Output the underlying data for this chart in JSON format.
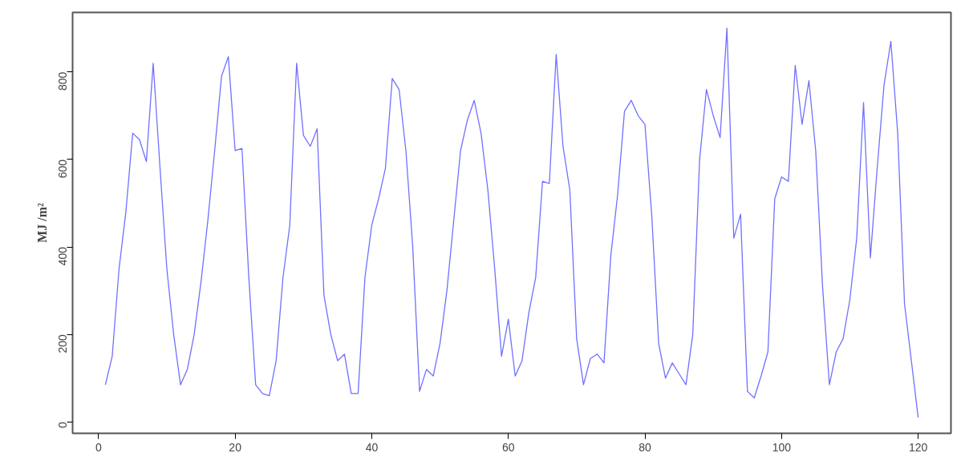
{
  "chart_data": {
    "type": "line",
    "ylabel": "MJ /m²",
    "x": [
      1,
      2,
      3,
      4,
      5,
      6,
      7,
      8,
      9,
      10,
      11,
      12,
      13,
      14,
      15,
      16,
      17,
      18,
      19,
      20,
      21,
      22,
      23,
      24,
      25,
      26,
      27,
      28,
      29,
      30,
      31,
      32,
      33,
      34,
      35,
      36,
      37,
      38,
      39,
      40,
      41,
      42,
      43,
      44,
      45,
      46,
      47,
      48,
      49,
      50,
      51,
      52,
      53,
      54,
      55,
      56,
      57,
      58,
      59,
      60,
      61,
      62,
      63,
      64,
      65,
      66,
      67,
      68,
      69,
      70,
      71,
      72,
      73,
      74,
      75,
      76,
      77,
      78,
      79,
      80,
      81,
      82,
      83,
      84,
      85,
      86,
      87,
      88,
      89,
      90,
      91,
      92,
      93,
      94,
      95,
      96,
      97,
      98,
      99,
      100,
      101,
      102,
      103,
      104,
      105,
      106,
      107,
      108,
      109,
      110,
      111,
      112,
      113,
      114,
      115,
      116,
      117,
      118,
      119,
      120
    ],
    "series": [
      {
        "color": "#7070ff",
        "values": [
          85,
          150,
          350,
          480,
          660,
          645,
          595,
          820,
          580,
          350,
          200,
          85,
          120,
          200,
          320,
          460,
          620,
          790,
          835,
          620,
          625,
          330,
          85,
          65,
          60,
          140,
          330,
          450,
          820,
          655,
          630,
          670,
          290,
          200,
          140,
          155,
          65,
          65,
          330,
          450,
          510,
          580,
          785,
          760,
          620,
          400,
          70,
          120,
          105,
          180,
          300,
          460,
          620,
          690,
          735,
          660,
          530,
          350,
          150,
          235,
          105,
          140,
          250,
          330,
          550,
          545,
          840,
          630,
          530,
          190,
          85,
          145,
          155,
          135,
          380,
          520,
          710,
          735,
          700,
          680,
          470,
          180,
          100,
          135,
          110,
          85,
          200,
          600,
          760,
          700,
          650,
          900,
          420,
          475,
          70,
          55,
          105,
          160,
          510,
          560,
          550,
          815,
          680,
          780,
          620,
          310,
          85,
          160,
          190,
          280,
          420,
          730,
          375,
          580,
          770,
          870,
          660,
          270,
          140,
          10
        ]
      }
    ],
    "xlim": [
      -3.8,
      124.8
    ],
    "ylim": [
      -26,
      936
    ],
    "xticks": [
      0,
      20,
      40,
      60,
      80,
      100,
      120
    ],
    "yticks": [
      0,
      200,
      400,
      600,
      800
    ],
    "grid": false,
    "line_style": "solid",
    "marker": "none"
  }
}
